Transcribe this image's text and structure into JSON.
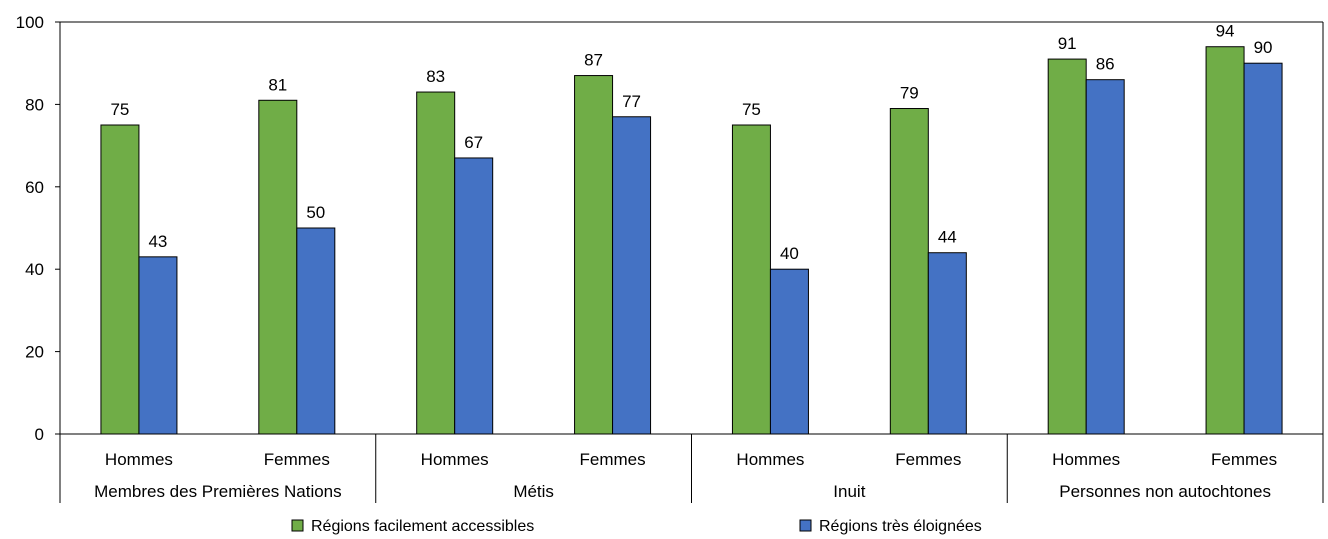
{
  "chart_data": {
    "type": "bar",
    "ylim": [
      0,
      100
    ],
    "yticks": [
      0,
      20,
      40,
      60,
      80,
      100
    ],
    "groups": [
      "Membres des Premières Nations",
      "Métis",
      "Inuit",
      "Personnes non autochtones"
    ],
    "subcategories": [
      "Hommes",
      "Femmes"
    ],
    "series": [
      {
        "name": "Régions facilement accessibles",
        "color": "#70ad47",
        "values": [
          75,
          81,
          83,
          87,
          75,
          79,
          91,
          94
        ]
      },
      {
        "name": "Régions très éloignées",
        "color": "#4472c4",
        "values": [
          43,
          50,
          67,
          77,
          40,
          44,
          86,
          90
        ]
      }
    ],
    "data_labels": [
      [
        "75",
        "81",
        "83",
        "87",
        "75",
        "79",
        "91",
        "94"
      ],
      [
        "43",
        "50",
        "67",
        "77",
        "40",
        "44",
        "86",
        "90"
      ]
    ],
    "legend_position": "bottom",
    "grid": false
  }
}
